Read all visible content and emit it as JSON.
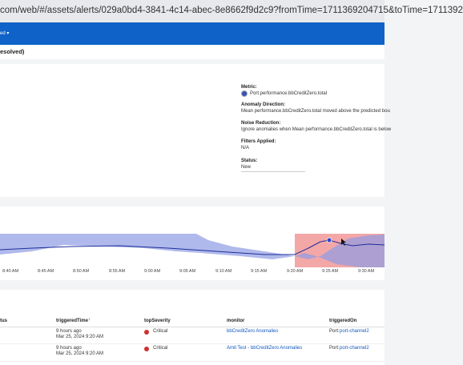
{
  "browser": {
    "url": "com/web/#/assets/alerts/029a0bd4-3841-4c14-abec-8e8662f9d2c9?fromTime=1711369204715&toTime=1711392"
  },
  "nav": {
    "menu": "ed"
  },
  "header": {
    "title": "esolved)"
  },
  "details": [
    {
      "label": "Metric:",
      "value": "Port.performance.bbCreditZero.total"
    },
    {
      "label": "Anomaly Direction:",
      "value": "Mean performance.bbCreditZero.total moved above the predicted bou"
    },
    {
      "label": "Noise Reduction:",
      "value": "Ignore anomalies when Mean performance.bbCreditZero.total is below"
    },
    {
      "label": "Filters Applied:",
      "value": "N/A"
    },
    {
      "label": "Status:",
      "value": "New"
    }
  ],
  "timeline": {
    "labels": [
      "8:40 AM",
      "8:45 AM",
      "8:50 AM",
      "8:55 AM",
      "9:00 AM",
      "9:05 AM",
      "9:10 AM",
      "9:15 AM",
      "9:20 AM",
      "9:25 AM",
      "9:30 AM"
    ]
  },
  "table": {
    "columns": [
      "tus",
      "triggeredTime",
      "topSeverity",
      "monitor",
      "triggeredOn"
    ],
    "rows": [
      {
        "relative": "9 hours ago",
        "time": "Mar 25, 2024 9:20 AM",
        "severity": "Critical",
        "monitor": "bbCreditZero Anomalies",
        "on_label": "Port:",
        "on_value": "port-channel2"
      },
      {
        "relative": "9 hours ago",
        "time": "Mar 25, 2024 9:20 AM",
        "severity": "Critical",
        "monitor": "Amit Test - bbCreditZero Anomalies",
        "on_label": "Port:",
        "on_value": "port-channel2"
      }
    ]
  }
}
